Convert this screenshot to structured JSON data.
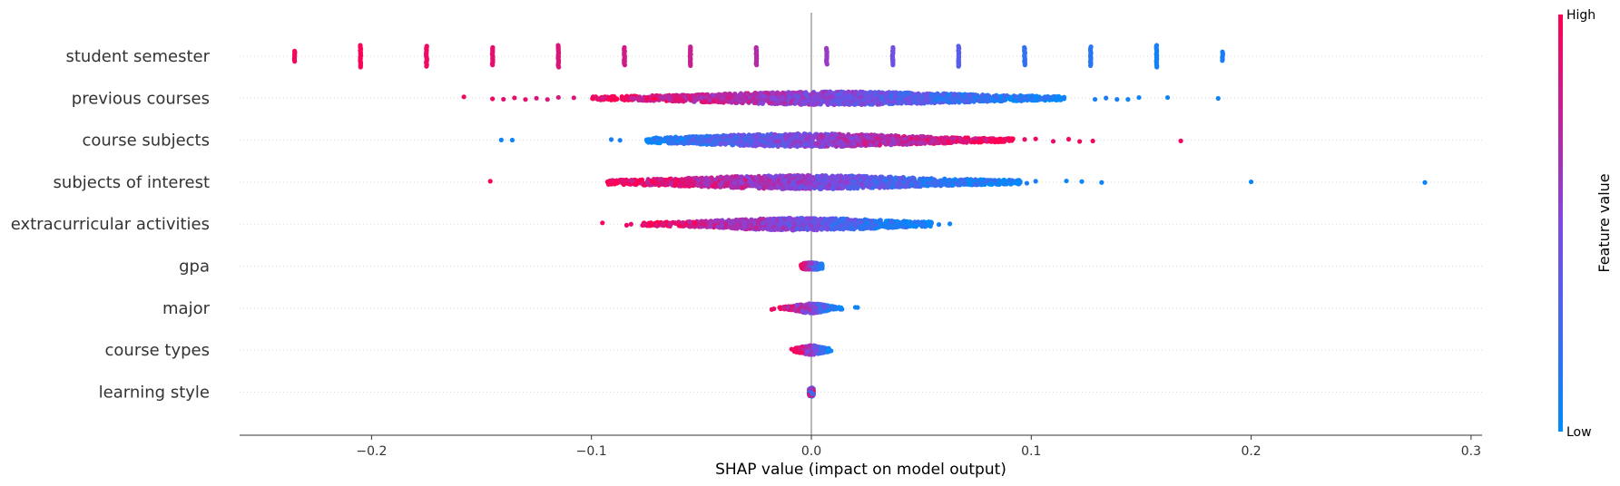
{
  "chart_data": {
    "type": "scatter",
    "subtype": "shap-beeswarm-summary",
    "title": "",
    "xlabel": "SHAP value (impact on model output)",
    "ylabel": "",
    "xlim": [
      -0.26,
      0.305
    ],
    "x_ticks": [
      -0.2,
      -0.1,
      0.0,
      0.1,
      0.2,
      0.3
    ],
    "x_tick_labels": [
      "−0.2",
      "−0.1",
      "0.0",
      "0.1",
      "0.2",
      "0.3"
    ],
    "grid": "dotted horizontal row guides",
    "zero_line": true,
    "colorbar": {
      "title": "Feature value",
      "high_label": "High",
      "low_label": "Low",
      "high_color": "#ff0052",
      "low_color": "#008bfb",
      "placement": "right"
    },
    "features": [
      {
        "name": "student semester",
        "discrete_bars": [
          {
            "x": -0.235,
            "value": 0.95,
            "spread": 0.35
          },
          {
            "x": -0.205,
            "value": 0.98,
            "spread": 0.75
          },
          {
            "x": -0.175,
            "value": 0.94,
            "spread": 0.7
          },
          {
            "x": -0.145,
            "value": 0.9,
            "spread": 0.6
          },
          {
            "x": -0.115,
            "value": 0.86,
            "spread": 0.75
          },
          {
            "x": -0.085,
            "value": 0.82,
            "spread": 0.6
          },
          {
            "x": -0.055,
            "value": 0.78,
            "spread": 0.65
          },
          {
            "x": -0.025,
            "value": 0.7,
            "spread": 0.6
          },
          {
            "x": 0.007,
            "value": 0.6,
            "spread": 0.55
          },
          {
            "x": 0.037,
            "value": 0.45,
            "spread": 0.6
          },
          {
            "x": 0.067,
            "value": 0.35,
            "spread": 0.7
          },
          {
            "x": 0.097,
            "value": 0.2,
            "spread": 0.6
          },
          {
            "x": 0.127,
            "value": 0.15,
            "spread": 0.65
          },
          {
            "x": 0.157,
            "value": 0.08,
            "spread": 0.75
          },
          {
            "x": 0.187,
            "value": 0.1,
            "spread": 0.3
          }
        ]
      },
      {
        "name": "previous courses",
        "core": {
          "min": -0.1,
          "max": 0.115,
          "peak": 0.012,
          "peak_width": 0.045,
          "max_spread": 0.45,
          "trend": "right-low",
          "gamma": 1.0
        },
        "outliers": [
          {
            "x": -0.158,
            "v": 0.95
          },
          {
            "x": -0.145,
            "v": 0.95
          },
          {
            "x": -0.14,
            "v": 0.9
          },
          {
            "x": -0.135,
            "v": 0.9
          },
          {
            "x": -0.13,
            "v": 0.9
          },
          {
            "x": -0.125,
            "v": 0.85
          },
          {
            "x": -0.12,
            "v": 0.85
          },
          {
            "x": -0.115,
            "v": 0.85
          },
          {
            "x": -0.108,
            "v": 0.85
          },
          {
            "x": 0.129,
            "v": 0.1
          },
          {
            "x": 0.134,
            "v": 0.1
          },
          {
            "x": 0.139,
            "v": 0.1
          },
          {
            "x": 0.144,
            "v": 0.05
          },
          {
            "x": 0.149,
            "v": 0.05
          },
          {
            "x": 0.162,
            "v": 0.05
          },
          {
            "x": 0.185,
            "v": 0.05
          }
        ]
      },
      {
        "name": "course subjects",
        "core": {
          "min": -0.075,
          "max": 0.092,
          "peak": -0.002,
          "peak_width": 0.038,
          "max_spread": 0.45,
          "trend": "right-high",
          "gamma": 1.3
        },
        "outliers": [
          {
            "x": -0.141,
            "v": 0.05
          },
          {
            "x": -0.136,
            "v": 0.05
          },
          {
            "x": -0.091,
            "v": 0.1
          },
          {
            "x": -0.087,
            "v": 0.1
          },
          {
            "x": 0.097,
            "v": 0.9
          },
          {
            "x": 0.102,
            "v": 0.95
          },
          {
            "x": 0.11,
            "v": 0.9
          },
          {
            "x": 0.117,
            "v": 0.95
          },
          {
            "x": 0.122,
            "v": 0.95
          },
          {
            "x": 0.128,
            "v": 0.95
          },
          {
            "x": 0.168,
            "v": 0.95
          }
        ]
      },
      {
        "name": "subjects of interest",
        "core": {
          "min": -0.093,
          "max": 0.095,
          "peak": -0.002,
          "peak_width": 0.042,
          "max_spread": 0.47,
          "trend": "right-low",
          "gamma": 1.0
        },
        "outliers": [
          {
            "x": -0.146,
            "v": 0.95
          },
          {
            "x": 0.098,
            "v": 0.1
          },
          {
            "x": 0.102,
            "v": 0.1
          },
          {
            "x": 0.116,
            "v": 0.05
          },
          {
            "x": 0.123,
            "v": 0.05
          },
          {
            "x": 0.132,
            "v": 0.05
          },
          {
            "x": 0.2,
            "v": 0.05
          },
          {
            "x": 0.279,
            "v": 0.05
          }
        ]
      },
      {
        "name": "extracurricular activities",
        "core": {
          "min": -0.077,
          "max": 0.055,
          "peak": -0.004,
          "peak_width": 0.03,
          "max_spread": 0.42,
          "trend": "right-low",
          "gamma": 1.0
        },
        "outliers": [
          {
            "x": -0.095,
            "v": 0.95
          },
          {
            "x": -0.084,
            "v": 0.95
          },
          {
            "x": -0.082,
            "v": 0.9
          },
          {
            "x": 0.058,
            "v": 0.1
          },
          {
            "x": 0.063,
            "v": 0.05
          }
        ]
      },
      {
        "name": "gpa",
        "core": {
          "min": -0.005,
          "max": 0.005,
          "peak": 0.0,
          "peak_width": 0.004,
          "max_spread": 0.25,
          "trend": "right-low",
          "gamma": 1.0
        },
        "outliers": []
      },
      {
        "name": "major",
        "core": {
          "min": -0.015,
          "max": 0.014,
          "peak": 0.0,
          "peak_width": 0.005,
          "max_spread": 0.35,
          "trend": "right-low",
          "gamma": 1.0
        },
        "outliers": [
          {
            "x": -0.018,
            "v": 0.95
          },
          {
            "x": -0.017,
            "v": 0.9
          },
          {
            "x": 0.02,
            "v": 0.05
          },
          {
            "x": 0.021,
            "v": 0.05
          }
        ]
      },
      {
        "name": "course types",
        "core": {
          "min": -0.008,
          "max": 0.008,
          "peak": 0.0,
          "peak_width": 0.004,
          "max_spread": 0.32,
          "trend": "right-low",
          "gamma": 1.0
        },
        "outliers": [
          {
            "x": -0.009,
            "v": 0.95
          },
          {
            "x": 0.009,
            "v": 0.05
          }
        ]
      },
      {
        "name": "learning style",
        "core": {
          "min": -0.001,
          "max": 0.001,
          "peak": 0.0,
          "peak_width": 0.001,
          "max_spread": 0.3,
          "trend": "mixed",
          "gamma": 1.0
        },
        "outliers": []
      }
    ]
  }
}
